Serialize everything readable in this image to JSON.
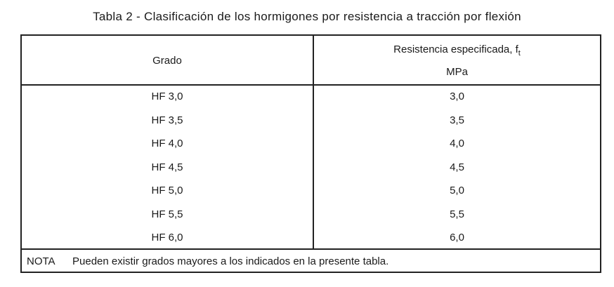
{
  "title": "Tabla 2 - Clasificación de los hormigones por resistencia a tracción por flexión",
  "table": {
    "header": {
      "grado": "Grado",
      "resistencia": "Resistencia especificada, f",
      "resistencia_sub": "t",
      "unit": "MPa"
    },
    "rows": [
      {
        "grado": "HF 3,0",
        "valor": "3,0"
      },
      {
        "grado": "HF 3,5",
        "valor": "3,5"
      },
      {
        "grado": "HF 4,0",
        "valor": "4,0"
      },
      {
        "grado": "HF 4,5",
        "valor": "4,5"
      },
      {
        "grado": "HF 5,0",
        "valor": "5,0"
      },
      {
        "grado": "HF 5,5",
        "valor": "5,5"
      },
      {
        "grado": "HF 6,0",
        "valor": "6,0"
      }
    ],
    "note_label": "NOTA",
    "note_text": "Pueden existir grados mayores a los indicados en la presente tabla."
  }
}
